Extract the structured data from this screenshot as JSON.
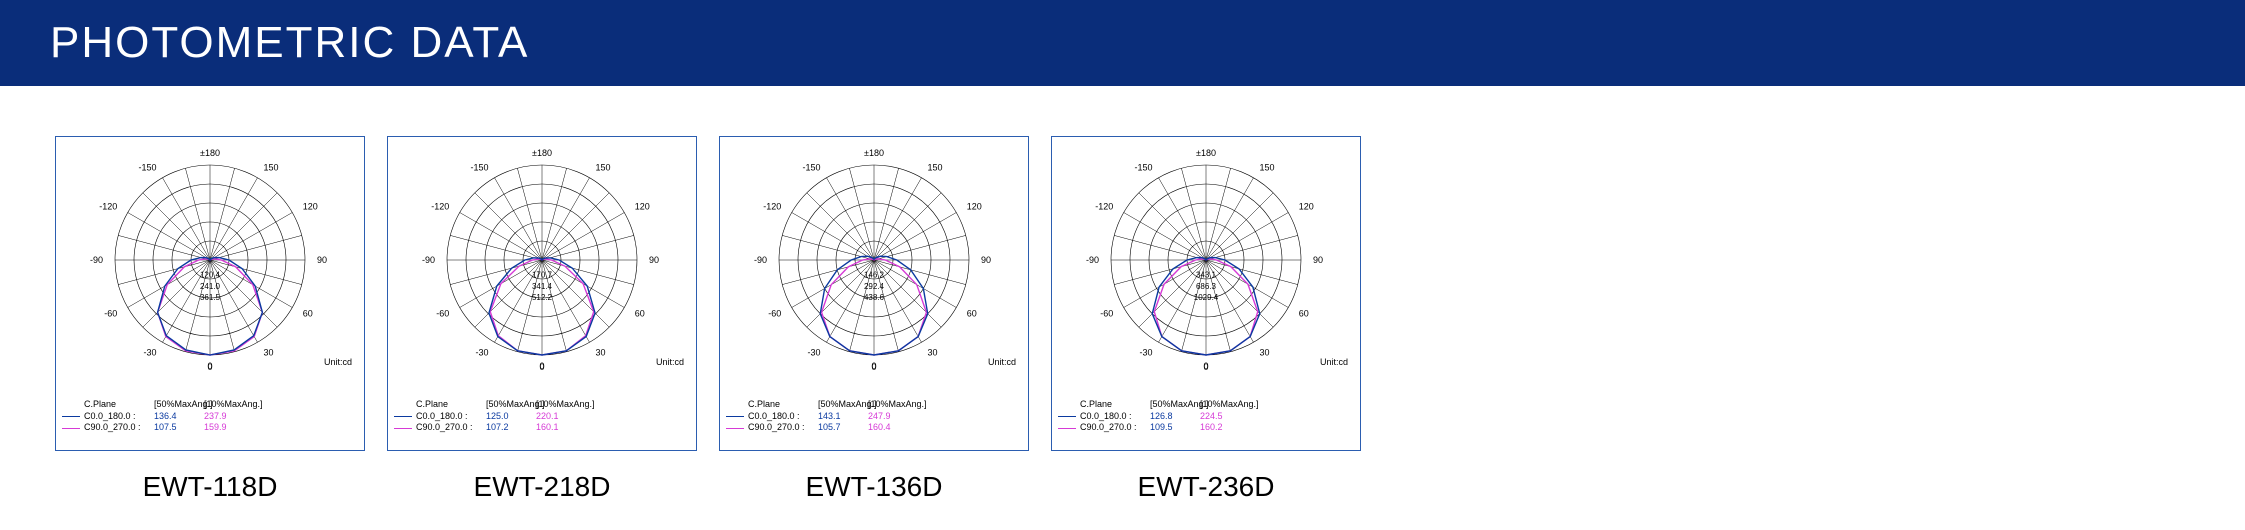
{
  "header": {
    "title": "PHOTOMETRIC DATA",
    "bg_color": "#0a2d7a",
    "text_color": "#ffffff"
  },
  "polar_common": {
    "angle_labels": [
      "±180",
      "150",
      "120",
      "90",
      "60",
      "30",
      "0",
      "-30",
      "-60",
      "-90",
      "-120",
      "-150"
    ],
    "angle_positions_deg": [
      90,
      60,
      30,
      0,
      -30,
      -60,
      -90,
      -120,
      -150,
      180,
      150,
      120
    ],
    "unit_label": "Unit:cd",
    "rings": 5,
    "radial_spoke_step_deg": 15,
    "grid_color": "#000000",
    "text_color": "#000000",
    "font_size_pt": 8,
    "legend_headers": [
      "C.Plane",
      "[50%MaxAng.]",
      "[10%MaxAng.]"
    ],
    "curve1_color": "#0b3aa0",
    "curve2_color": "#d63ad6",
    "curve1_label": "C0.0_180.0 :",
    "curve2_label": "C90.0_270.0 :",
    "v1_color": "#0b3aa0",
    "v2_color": "#d63ad6"
  },
  "charts": [
    {
      "id": "EWT-118D",
      "ring_values": [
        "120.4",
        "241.0",
        "361.5"
      ],
      "curve1": {
        "max50": "136.4",
        "max10": "237.9",
        "profile": [
          0.0,
          0.02,
          0.05,
          0.1,
          0.2,
          0.35,
          0.55,
          0.78,
          0.92,
          0.98,
          1.0,
          0.98,
          0.92,
          0.78,
          0.55,
          0.35,
          0.2,
          0.1,
          0.05,
          0.02,
          0.0,
          0.0,
          0.0,
          0.0
        ]
      },
      "curve2": {
        "max50": "107.5",
        "max10": "159.9",
        "profile": [
          0.0,
          0.0,
          0.02,
          0.05,
          0.12,
          0.28,
          0.52,
          0.78,
          0.93,
          0.99,
          1.0,
          0.99,
          0.93,
          0.78,
          0.52,
          0.28,
          0.12,
          0.05,
          0.02,
          0.0,
          0.0,
          0.0,
          0.0,
          0.0
        ]
      }
    },
    {
      "id": "EWT-218D",
      "ring_values": [
        "170.7",
        "341.4",
        "512.2"
      ],
      "curve1": {
        "max50": "125.0",
        "max10": "220.1",
        "profile": [
          0.0,
          0.02,
          0.04,
          0.09,
          0.18,
          0.33,
          0.55,
          0.79,
          0.93,
          0.99,
          1.0,
          0.99,
          0.93,
          0.79,
          0.55,
          0.33,
          0.18,
          0.09,
          0.04,
          0.02,
          0.0,
          0.0,
          0.0,
          0.0
        ]
      },
      "curve2": {
        "max50": "107.2",
        "max10": "160.1",
        "profile": [
          0.0,
          0.0,
          0.02,
          0.04,
          0.1,
          0.25,
          0.5,
          0.77,
          0.92,
          0.99,
          1.0,
          0.99,
          0.92,
          0.77,
          0.5,
          0.25,
          0.1,
          0.04,
          0.02,
          0.0,
          0.0,
          0.0,
          0.0,
          0.0
        ]
      }
    },
    {
      "id": "EWT-136D",
      "ring_values": [
        "146.2",
        "292.4",
        "438.6"
      ],
      "curve1": {
        "max50": "143.1",
        "max10": "247.9",
        "profile": [
          0.02,
          0.04,
          0.08,
          0.14,
          0.24,
          0.4,
          0.6,
          0.8,
          0.93,
          0.99,
          1.0,
          0.99,
          0.93,
          0.8,
          0.6,
          0.4,
          0.24,
          0.14,
          0.08,
          0.04,
          0.02,
          0.01,
          0.01,
          0.01
        ]
      },
      "curve2": {
        "max50": "105.7",
        "max10": "160.4",
        "profile": [
          0.0,
          0.0,
          0.02,
          0.05,
          0.12,
          0.28,
          0.52,
          0.78,
          0.93,
          0.99,
          1.0,
          0.99,
          0.93,
          0.78,
          0.52,
          0.28,
          0.12,
          0.05,
          0.02,
          0.0,
          0.0,
          0.0,
          0.0,
          0.0
        ]
      }
    },
    {
      "id": "EWT-236D",
      "ring_values": [
        "343.1",
        "686.3",
        "1029.4"
      ],
      "curve1": {
        "max50": "126.8",
        "max10": "224.5",
        "profile": [
          0.0,
          0.02,
          0.05,
          0.1,
          0.2,
          0.36,
          0.57,
          0.8,
          0.93,
          0.99,
          1.0,
          0.99,
          0.93,
          0.8,
          0.57,
          0.36,
          0.2,
          0.1,
          0.05,
          0.02,
          0.0,
          0.0,
          0.0,
          0.0
        ]
      },
      "curve2": {
        "max50": "109.5",
        "max10": "160.2",
        "profile": [
          0.0,
          0.0,
          0.02,
          0.05,
          0.11,
          0.27,
          0.51,
          0.77,
          0.93,
          0.99,
          1.0,
          0.99,
          0.93,
          0.77,
          0.51,
          0.27,
          0.11,
          0.05,
          0.02,
          0.0,
          0.0,
          0.0,
          0.0,
          0.0
        ]
      }
    }
  ]
}
